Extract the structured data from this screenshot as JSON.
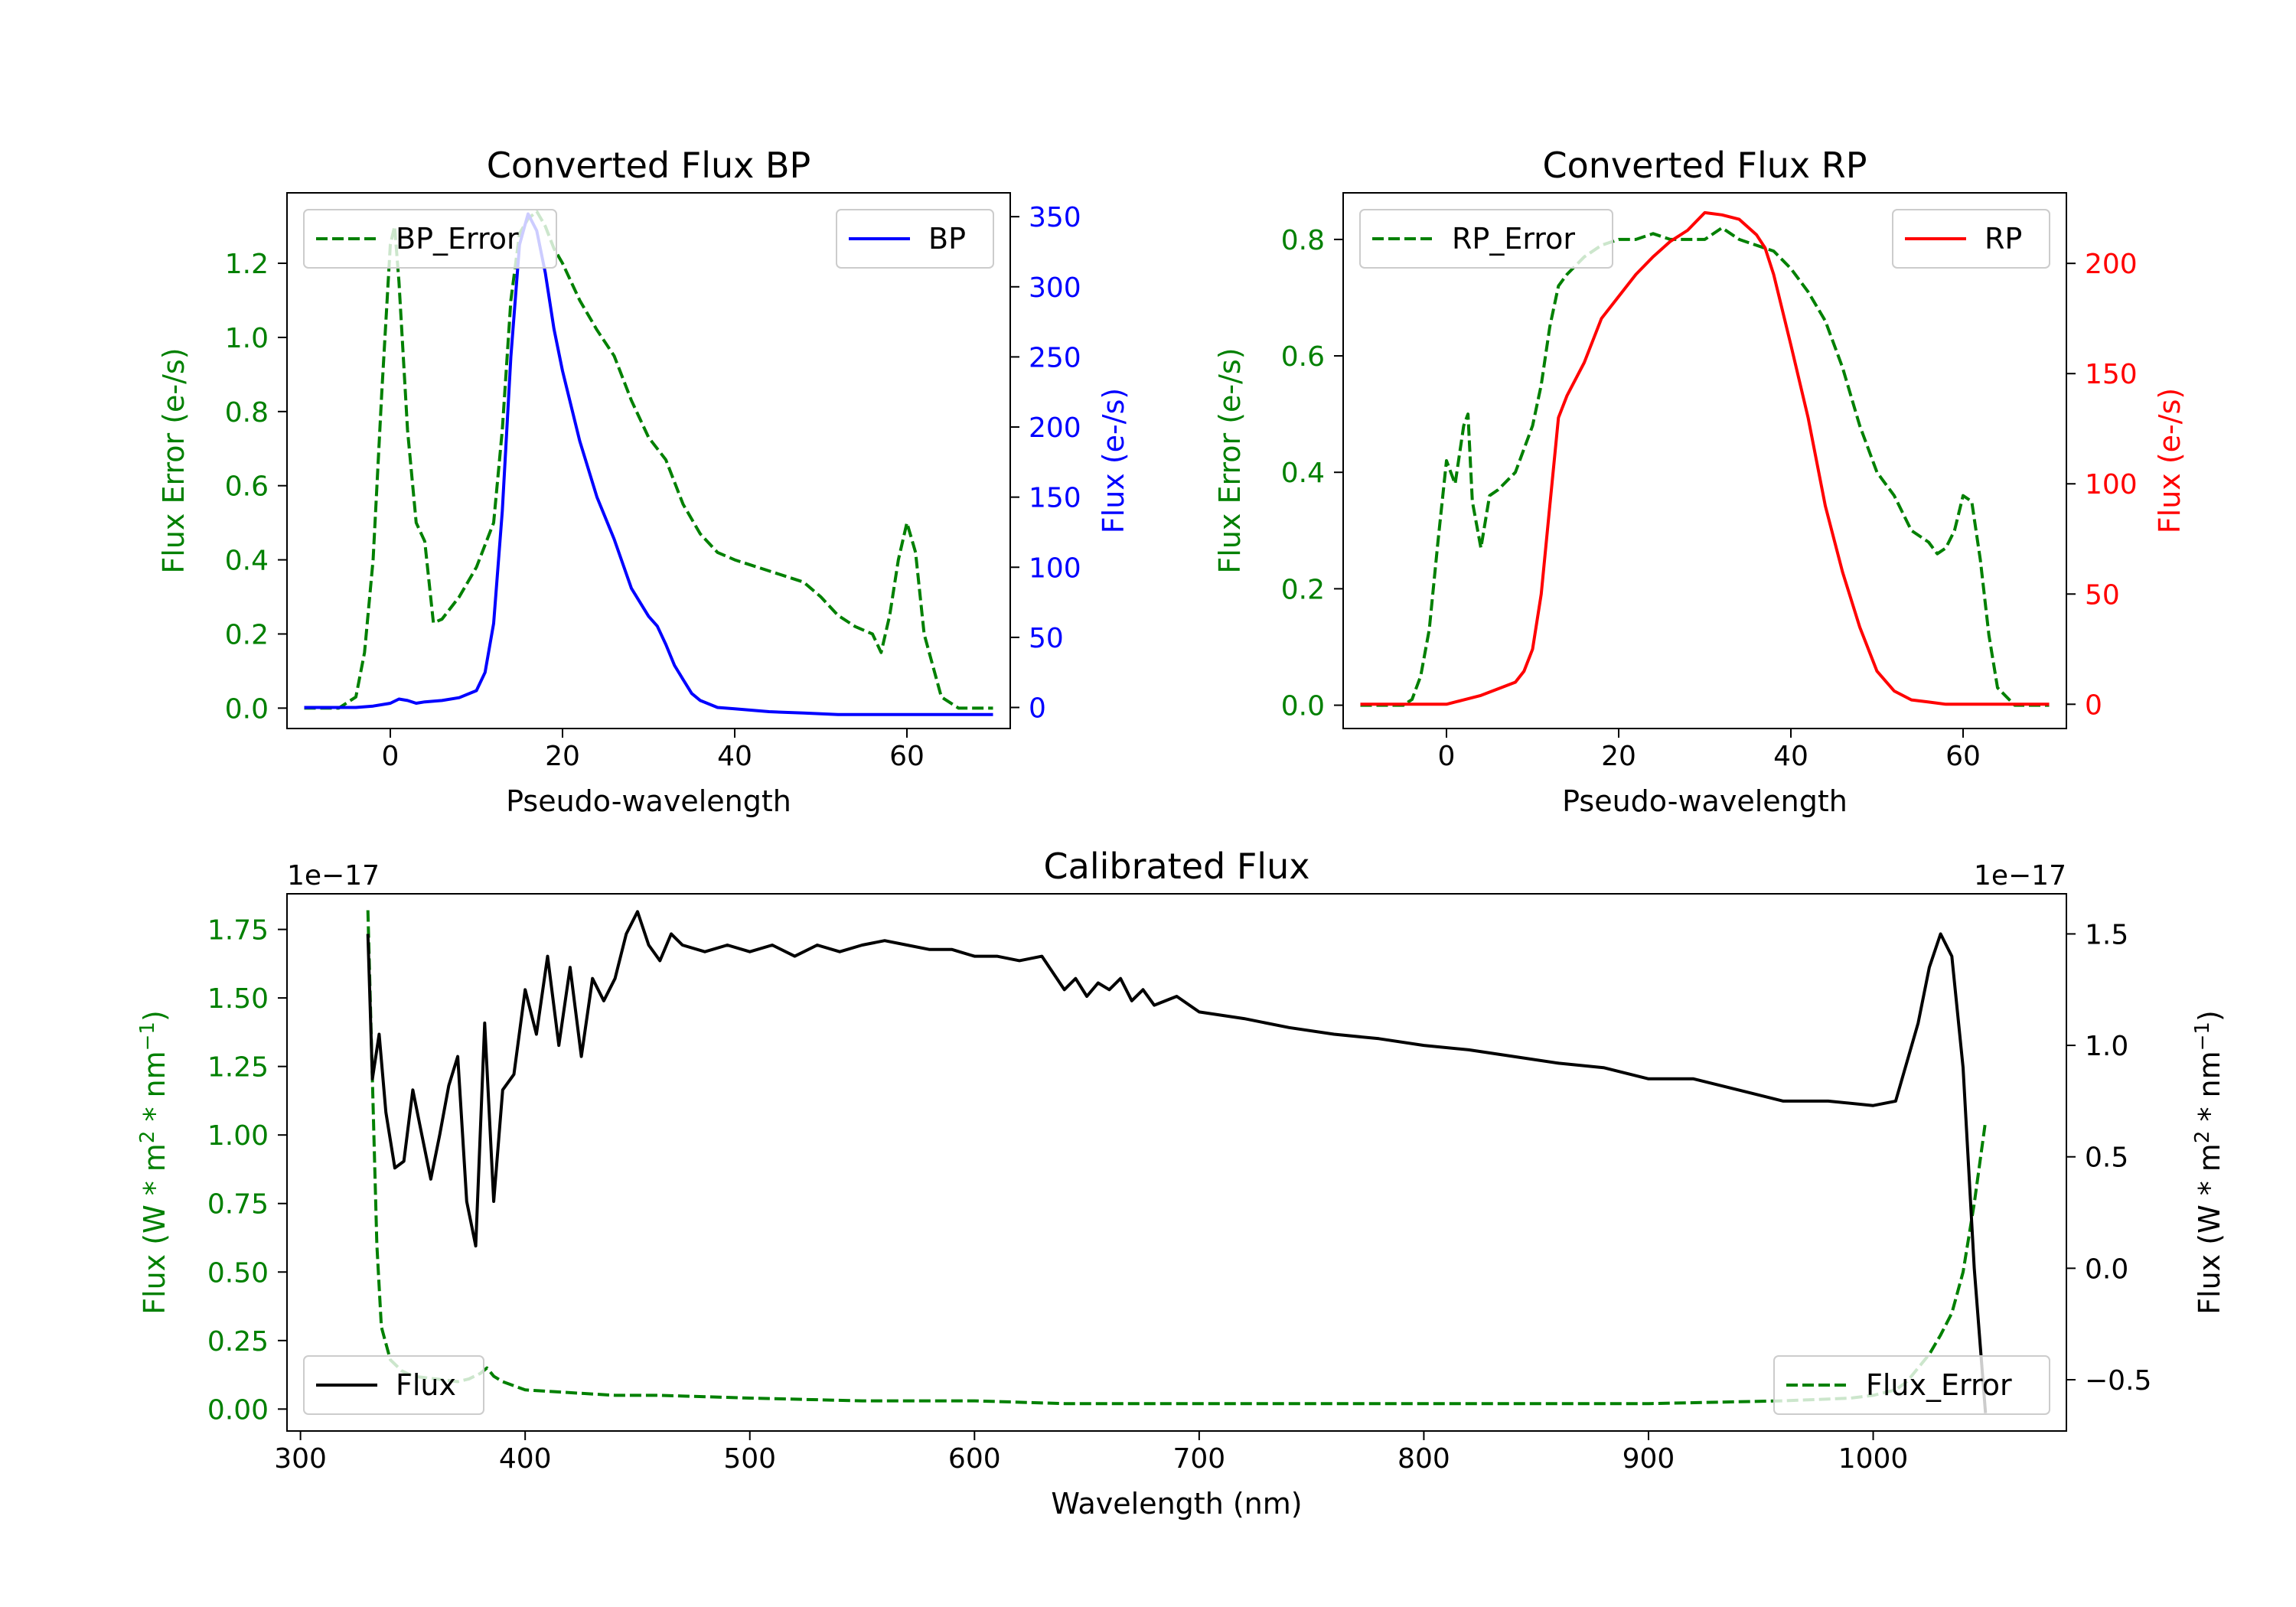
{
  "chart_data": [
    {
      "id": "bp",
      "type": "line",
      "title": "Converted Flux BP",
      "xlabel": "Pseudo-wavelength",
      "xlim": [
        -12,
        72
      ],
      "xticks": [
        0,
        20,
        40,
        60
      ],
      "left_axis": {
        "label": "Flux Error (e-/s)",
        "color": "#008000",
        "ylim": [
          -0.055,
          1.39
        ],
        "ticks": [
          0.0,
          0.2,
          0.4,
          0.6,
          0.8,
          1.0,
          1.2
        ],
        "tick_labels": [
          "0.0",
          "0.2",
          "0.4",
          "0.6",
          "0.8",
          "1.0",
          "1.2"
        ]
      },
      "right_axis": {
        "label": "Flux (e-/s)",
        "color": "#0000ff",
        "ylim": [
          -15,
          367
        ],
        "ticks": [
          0,
          50,
          100,
          150,
          200,
          250,
          300,
          350
        ],
        "tick_labels": [
          "0",
          "50",
          "100",
          "150",
          "200",
          "250",
          "300",
          "350"
        ]
      },
      "series": [
        {
          "name": "BP_Error",
          "axis": "left",
          "color": "#008000",
          "dashed": true,
          "x": [
            -10,
            -6,
            -4,
            -3,
            -2,
            -1,
            0,
            0.5,
            1,
            2,
            3,
            4,
            5,
            6,
            8,
            10,
            12,
            13,
            14,
            15,
            16,
            17,
            18,
            19,
            20,
            22,
            24,
            26,
            28,
            30,
            32,
            34,
            36,
            38,
            40,
            44,
            48,
            50,
            52,
            54,
            56,
            57,
            58,
            59,
            60,
            61,
            62,
            64,
            66,
            70
          ],
          "values": [
            0.0,
            0.0,
            0.03,
            0.15,
            0.4,
            0.85,
            1.25,
            1.3,
            1.15,
            0.75,
            0.5,
            0.45,
            0.23,
            0.24,
            0.3,
            0.38,
            0.5,
            0.75,
            1.1,
            1.28,
            1.32,
            1.34,
            1.3,
            1.24,
            1.2,
            1.1,
            1.02,
            0.95,
            0.83,
            0.73,
            0.67,
            0.55,
            0.47,
            0.42,
            0.4,
            0.37,
            0.34,
            0.3,
            0.25,
            0.22,
            0.2,
            0.15,
            0.25,
            0.4,
            0.5,
            0.42,
            0.2,
            0.03,
            0.0,
            0.0
          ]
        },
        {
          "name": "BP",
          "axis": "right",
          "color": "#0000ff",
          "dashed": false,
          "x": [
            -10,
            -4,
            -2,
            0,
            1,
            2,
            3,
            4,
            6,
            8,
            10,
            11,
            12,
            13,
            14,
            15,
            16,
            17,
            18,
            19,
            20,
            22,
            24,
            26,
            28,
            30,
            31,
            32,
            33,
            34,
            35,
            36,
            38,
            40,
            44,
            48,
            52,
            56,
            60,
            65,
            70
          ],
          "values": [
            0,
            0,
            1,
            3,
            6,
            5,
            3,
            4,
            5,
            7,
            12,
            25,
            60,
            140,
            250,
            330,
            352,
            340,
            310,
            270,
            240,
            190,
            150,
            120,
            85,
            65,
            58,
            45,
            30,
            20,
            10,
            5,
            0,
            -1,
            -3,
            -4,
            -5,
            -5,
            -5,
            -5,
            -5
          ]
        }
      ]
    },
    {
      "id": "rp",
      "type": "line",
      "title": "Converted Flux RP",
      "xlabel": "Pseudo-wavelength",
      "xlim": [
        -12,
        72
      ],
      "xticks": [
        0,
        20,
        40,
        60
      ],
      "left_axis": {
        "label": "Flux Error (e-/s)",
        "color": "#008000",
        "ylim": [
          -0.04,
          0.88
        ],
        "ticks": [
          0.0,
          0.2,
          0.4,
          0.6,
          0.8
        ],
        "tick_labels": [
          "0.0",
          "0.2",
          "0.4",
          "0.6",
          "0.8"
        ]
      },
      "right_axis": {
        "label": "Flux (e-/s)",
        "color": "#ff0000",
        "ylim": [
          -11,
          232
        ],
        "ticks": [
          0,
          50,
          100,
          150,
          200
        ],
        "tick_labels": [
          "0",
          "50",
          "100",
          "150",
          "200"
        ]
      },
      "series": [
        {
          "name": "RP_Error",
          "axis": "left",
          "color": "#008000",
          "dashed": true,
          "x": [
            -10,
            -5,
            -4,
            -3,
            -2,
            -1,
            0,
            1,
            2,
            2.5,
            3,
            4,
            5,
            6,
            8,
            10,
            11,
            12,
            13,
            14,
            16,
            18,
            20,
            22,
            24,
            26,
            28,
            30,
            32,
            34,
            36,
            38,
            40,
            42,
            44,
            46,
            48,
            50,
            52,
            54,
            56,
            57,
            58,
            59,
            60,
            61,
            62,
            63,
            64,
            66,
            70
          ],
          "values": [
            0.0,
            0.0,
            0.01,
            0.05,
            0.13,
            0.28,
            0.42,
            0.38,
            0.48,
            0.5,
            0.35,
            0.27,
            0.36,
            0.37,
            0.4,
            0.48,
            0.55,
            0.65,
            0.72,
            0.74,
            0.77,
            0.79,
            0.8,
            0.8,
            0.81,
            0.8,
            0.8,
            0.8,
            0.82,
            0.8,
            0.79,
            0.78,
            0.75,
            0.71,
            0.66,
            0.58,
            0.48,
            0.4,
            0.36,
            0.3,
            0.28,
            0.26,
            0.27,
            0.3,
            0.36,
            0.35,
            0.25,
            0.12,
            0.03,
            0.0,
            0.0
          ]
        },
        {
          "name": "RP",
          "axis": "right",
          "color": "#ff0000",
          "dashed": false,
          "x": [
            -10,
            -5,
            0,
            2,
            4,
            6,
            8,
            9,
            10,
            11,
            12,
            13,
            14,
            16,
            18,
            20,
            22,
            24,
            26,
            28,
            30,
            32,
            34,
            36,
            37,
            38,
            40,
            42,
            44,
            46,
            48,
            50,
            52,
            54,
            56,
            58,
            60,
            65,
            70
          ],
          "values": [
            0,
            0,
            0,
            2,
            4,
            7,
            10,
            15,
            25,
            50,
            90,
            130,
            140,
            155,
            175,
            185,
            195,
            203,
            210,
            215,
            223,
            222,
            220,
            213,
            207,
            195,
            163,
            130,
            90,
            60,
            35,
            15,
            6,
            2,
            1,
            0,
            0,
            0,
            0
          ]
        }
      ]
    },
    {
      "id": "cal",
      "type": "line",
      "title": "Calibrated Flux",
      "xlabel": "Wavelength (nm)",
      "xlim": [
        294,
        1086
      ],
      "xticks": [
        300,
        400,
        500,
        600,
        700,
        800,
        900,
        1000
      ],
      "left_axis": {
        "label": "Flux (W * m^2 * nm^-1)",
        "color": "#008000",
        "offset_text": "1e−17",
        "ylim": [
          -0.08,
          1.88
        ],
        "ticks": [
          0.0,
          0.25,
          0.5,
          0.75,
          1.0,
          1.25,
          1.5,
          1.75
        ],
        "tick_labels": [
          "0.00",
          "0.25",
          "0.50",
          "0.75",
          "1.00",
          "1.25",
          "1.50",
          "1.75"
        ]
      },
      "right_axis": {
        "label": "Flux (W * m^2 * nm^-1)",
        "color": "#000000",
        "offset_text": "1e−17",
        "ylim": [
          -0.73,
          1.68
        ],
        "ticks": [
          -0.5,
          0.0,
          0.5,
          1.0,
          1.5
        ],
        "tick_labels": [
          "−0.5",
          "0.0",
          "0.5",
          "1.0",
          "1.5"
        ]
      },
      "series": [
        {
          "name": "Flux_Error",
          "axis": "left",
          "color": "#008000",
          "dashed": true,
          "x": [
            330,
            332,
            334,
            336,
            340,
            345,
            350,
            360,
            370,
            375,
            380,
            383,
            386,
            390,
            400,
            420,
            440,
            460,
            500,
            550,
            600,
            640,
            700,
            800,
            900,
            960,
            990,
            1000,
            1010,
            1015,
            1020,
            1025,
            1030,
            1035,
            1040,
            1045,
            1050
          ],
          "values": [
            1.82,
            1.2,
            0.6,
            0.3,
            0.18,
            0.14,
            0.12,
            0.11,
            0.1,
            0.11,
            0.13,
            0.15,
            0.12,
            0.1,
            0.07,
            0.06,
            0.05,
            0.05,
            0.04,
            0.03,
            0.03,
            0.02,
            0.02,
            0.02,
            0.02,
            0.03,
            0.04,
            0.05,
            0.07,
            0.1,
            0.15,
            0.2,
            0.27,
            0.35,
            0.5,
            0.75,
            1.05
          ]
        },
        {
          "name": "Flux",
          "axis": "right",
          "color": "#000000",
          "dashed": false,
          "x": [
            330,
            332,
            335,
            338,
            342,
            346,
            350,
            354,
            358,
            362,
            366,
            370,
            374,
            378,
            382,
            386,
            390,
            395,
            400,
            405,
            410,
            415,
            420,
            425,
            430,
            435,
            440,
            445,
            450,
            455,
            460,
            465,
            470,
            480,
            490,
            500,
            510,
            520,
            530,
            540,
            550,
            560,
            570,
            580,
            590,
            600,
            610,
            620,
            630,
            640,
            645,
            650,
            655,
            660,
            665,
            670,
            675,
            680,
            690,
            700,
            720,
            740,
            760,
            780,
            800,
            820,
            840,
            860,
            880,
            900,
            920,
            940,
            960,
            980,
            1000,
            1010,
            1020,
            1025,
            1030,
            1035,
            1040,
            1045,
            1050
          ],
          "values": [
            1.5,
            0.85,
            1.05,
            0.7,
            0.45,
            0.48,
            0.8,
            0.6,
            0.4,
            0.6,
            0.82,
            0.95,
            0.3,
            0.1,
            1.1,
            0.3,
            0.8,
            0.87,
            1.25,
            1.05,
            1.4,
            1.0,
            1.35,
            0.95,
            1.3,
            1.2,
            1.3,
            1.5,
            1.6,
            1.45,
            1.38,
            1.5,
            1.45,
            1.42,
            1.45,
            1.42,
            1.45,
            1.4,
            1.45,
            1.42,
            1.45,
            1.47,
            1.45,
            1.43,
            1.43,
            1.4,
            1.4,
            1.38,
            1.4,
            1.25,
            1.3,
            1.22,
            1.28,
            1.25,
            1.3,
            1.2,
            1.25,
            1.18,
            1.22,
            1.15,
            1.12,
            1.08,
            1.05,
            1.03,
            1.0,
            0.98,
            0.95,
            0.92,
            0.9,
            0.85,
            0.85,
            0.8,
            0.75,
            0.75,
            0.73,
            0.75,
            1.1,
            1.35,
            1.5,
            1.4,
            0.9,
            0.0,
            -0.65
          ]
        }
      ]
    }
  ],
  "legends": {
    "bp_error": "BP_Error",
    "bp": "BP",
    "rp_error": "RP_Error",
    "rp": "RP",
    "flux": "Flux",
    "flux_error": "Flux_Error"
  }
}
